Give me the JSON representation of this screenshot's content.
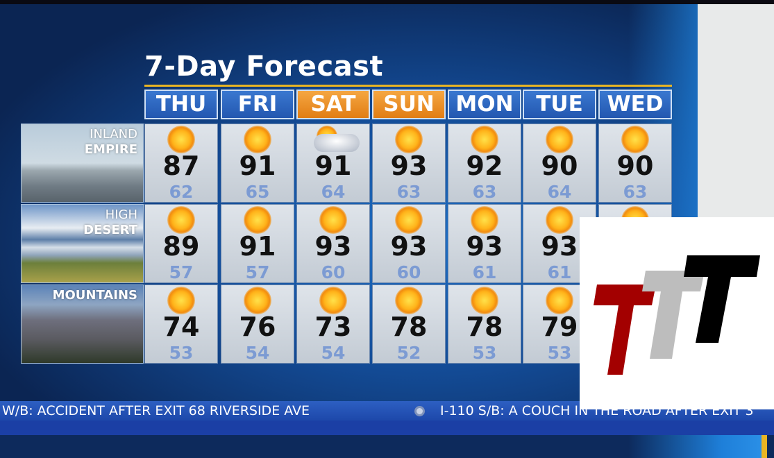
{
  "title": "7-Day Forecast",
  "days": [
    {
      "label": "THU",
      "weekend": false
    },
    {
      "label": "FRI",
      "weekend": false
    },
    {
      "label": "SAT",
      "weekend": true
    },
    {
      "label": "SUN",
      "weekend": true
    },
    {
      "label": "MON",
      "weekend": false
    },
    {
      "label": "TUE",
      "weekend": false
    },
    {
      "label": "WED",
      "weekend": false
    }
  ],
  "colors": {
    "weekday_header": "#2d67c2",
    "weekend_header": "#ee9126",
    "low_temp": "#7c9bd3",
    "accent_gold": "#e9b523"
  },
  "regions": [
    {
      "line1": "INLAND",
      "line2": "EMPIRE",
      "forecast": [
        {
          "icon": "sun-icon",
          "hi": "87",
          "lo": "62"
        },
        {
          "icon": "sun-icon",
          "hi": "91",
          "lo": "65"
        },
        {
          "icon": "partly-cloudy-icon",
          "hi": "91",
          "lo": "64"
        },
        {
          "icon": "sun-icon",
          "hi": "93",
          "lo": "63"
        },
        {
          "icon": "sun-icon",
          "hi": "92",
          "lo": "63"
        },
        {
          "icon": "sun-icon",
          "hi": "90",
          "lo": "64"
        },
        {
          "icon": "sun-icon",
          "hi": "90",
          "lo": "63"
        }
      ]
    },
    {
      "line1": "HIGH",
      "line2": "DESERT",
      "forecast": [
        {
          "icon": "sun-icon",
          "hi": "89",
          "lo": "57"
        },
        {
          "icon": "sun-icon",
          "hi": "91",
          "lo": "57"
        },
        {
          "icon": "sun-icon",
          "hi": "93",
          "lo": "60"
        },
        {
          "icon": "sun-icon",
          "hi": "93",
          "lo": "60"
        },
        {
          "icon": "sun-icon",
          "hi": "93",
          "lo": "61"
        },
        {
          "icon": "sun-icon",
          "hi": "93",
          "lo": "61"
        },
        {
          "icon": "sun-icon",
          "hi": "",
          "lo": ""
        }
      ]
    },
    {
      "line1": "",
      "line2": "MOUNTAINS",
      "forecast": [
        {
          "icon": "sun-icon",
          "hi": "74",
          "lo": "53"
        },
        {
          "icon": "sun-icon",
          "hi": "76",
          "lo": "54"
        },
        {
          "icon": "sun-icon",
          "hi": "73",
          "lo": "54"
        },
        {
          "icon": "sun-icon",
          "hi": "78",
          "lo": "52"
        },
        {
          "icon": "sun-icon",
          "hi": "78",
          "lo": "53"
        },
        {
          "icon": "sun-icon",
          "hi": "79",
          "lo": "53"
        },
        {
          "icon": "sun-icon",
          "hi": "",
          "lo": ""
        }
      ]
    }
  ],
  "ticker": {
    "item1": "W/B: ACCIDENT AFTER EXIT 68 RIVERSIDE AVE",
    "item2": "I-110 S/B: A COUCH IN THE ROAD AFTER EXIT 3"
  },
  "logo": {
    "text": "TTT",
    "colors": [
      "#a30000",
      "#bdbdbd",
      "#000000"
    ]
  }
}
